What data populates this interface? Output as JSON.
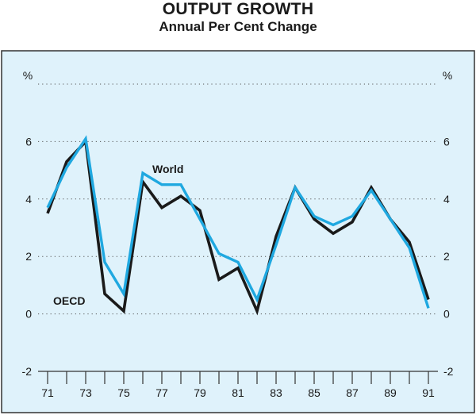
{
  "chart_data": {
    "type": "line",
    "title": "OUTPUT GROWTH",
    "subtitle": "Annual Per Cent Change",
    "ylabel_left": "%",
    "ylabel_right": "%",
    "ylim": [
      -2,
      8
    ],
    "yticks": [
      -2,
      0,
      2,
      4,
      6
    ],
    "xlim": [
      1970.5,
      1991.5
    ],
    "xtick_labels": [
      "71",
      "73",
      "75",
      "77",
      "79",
      "81",
      "83",
      "85",
      "87",
      "89",
      "91"
    ],
    "x": [
      1971,
      1972,
      1973,
      1974,
      1975,
      1976,
      1977,
      1978,
      1979,
      1980,
      1981,
      1982,
      1983,
      1984,
      1985,
      1986,
      1987,
      1988,
      1989,
      1990,
      1991
    ],
    "series": [
      {
        "name": "OECD",
        "color": "#1a1a1a",
        "values": [
          3.5,
          5.3,
          6.0,
          0.7,
          0.1,
          4.6,
          3.7,
          4.1,
          3.6,
          1.2,
          1.6,
          0.1,
          2.7,
          4.4,
          3.3,
          2.8,
          3.2,
          4.4,
          3.3,
          2.5,
          0.5
        ]
      },
      {
        "name": "World",
        "color": "#1fa8e0",
        "values": [
          3.7,
          5.1,
          6.1,
          1.8,
          0.7,
          4.9,
          4.5,
          4.5,
          3.3,
          2.1,
          1.8,
          0.5,
          2.4,
          4.4,
          3.4,
          3.1,
          3.4,
          4.3,
          3.3,
          2.3,
          0.2
        ]
      }
    ],
    "annotations": [
      {
        "text": "World",
        "series": "World"
      },
      {
        "text": "OECD",
        "series": "OECD"
      }
    ],
    "frame_bg": "#dff2fb",
    "grid": "dotted"
  }
}
